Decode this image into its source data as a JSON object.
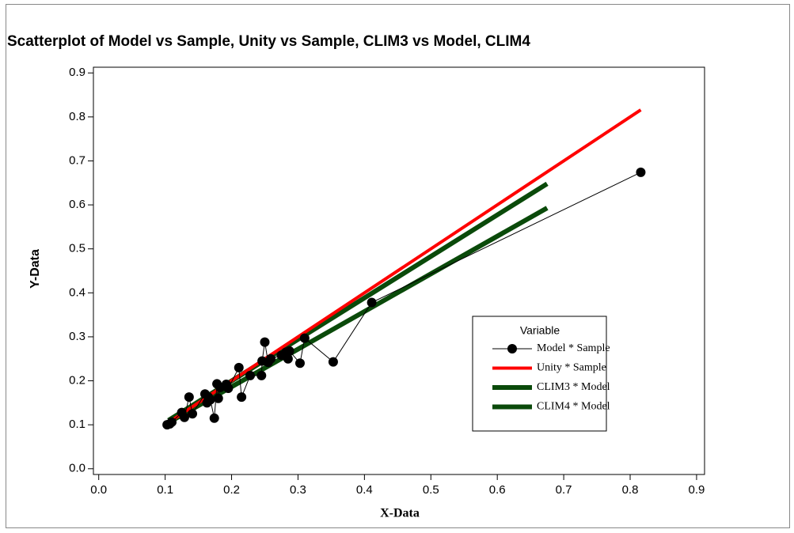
{
  "chart_data": {
    "type": "scatter",
    "title": "Scatterplot of Model vs Sample, Unity vs Sample, CLIM3 vs Model, CLIM4",
    "xlabel": "X-Data",
    "ylabel": "Y-Data",
    "legend_title": "Variable",
    "xlim": [
      -0.008,
      0.912
    ],
    "ylim": [
      -0.013,
      0.913
    ],
    "xticks": [
      {
        "value": 0,
        "label": "0.0"
      },
      0.1,
      0.2,
      0.3,
      0.4,
      0.5,
      0.6,
      0.7,
      0.8,
      0.9
    ],
    "yticks": [
      {
        "value": 0,
        "label": "0.0"
      },
      0.1,
      0.2,
      0.3,
      0.4,
      0.5,
      0.6,
      0.7,
      0.8,
      0.9
    ],
    "series": [
      {
        "name": "Model * Sample",
        "color": "#000000",
        "marker": "circle",
        "line_width": 1,
        "x": [
          0.103,
          0.107,
          0.11,
          0.125,
          0.129,
          0.136,
          0.141,
          0.16,
          0.163,
          0.165,
          0.168,
          0.174,
          0.178,
          0.18,
          0.183,
          0.192,
          0.195,
          0.211,
          0.215,
          0.228,
          0.245,
          0.246,
          0.25,
          0.255,
          0.259,
          0.275,
          0.282,
          0.285,
          0.287,
          0.303,
          0.31,
          0.353,
          0.411,
          0.816
        ],
        "values": [
          0.1,
          0.102,
          0.106,
          0.128,
          0.117,
          0.163,
          0.125,
          0.17,
          0.15,
          0.163,
          0.157,
          0.115,
          0.193,
          0.16,
          0.185,
          0.192,
          0.183,
          0.23,
          0.163,
          0.212,
          0.212,
          0.245,
          0.288,
          0.242,
          0.25,
          0.258,
          0.265,
          0.25,
          0.268,
          0.24,
          0.297,
          0.243,
          0.378,
          0.674
        ]
      },
      {
        "name": "Unity * Sample",
        "color": "#ff0000",
        "line_width": 4,
        "x": [
          0.103,
          0.816
        ],
        "values": [
          0.103,
          0.816
        ]
      },
      {
        "name": "CLIM3 * Model",
        "color": "#0a4a0a",
        "line_width": 6,
        "x": [
          0.105,
          0.675
        ],
        "values": [
          0.11,
          0.648
        ]
      },
      {
        "name": "CLIM4 * Model",
        "color": "#0a4a0a",
        "line_width": 6,
        "x": [
          0.105,
          0.675
        ],
        "values": [
          0.105,
          0.593
        ]
      }
    ]
  }
}
